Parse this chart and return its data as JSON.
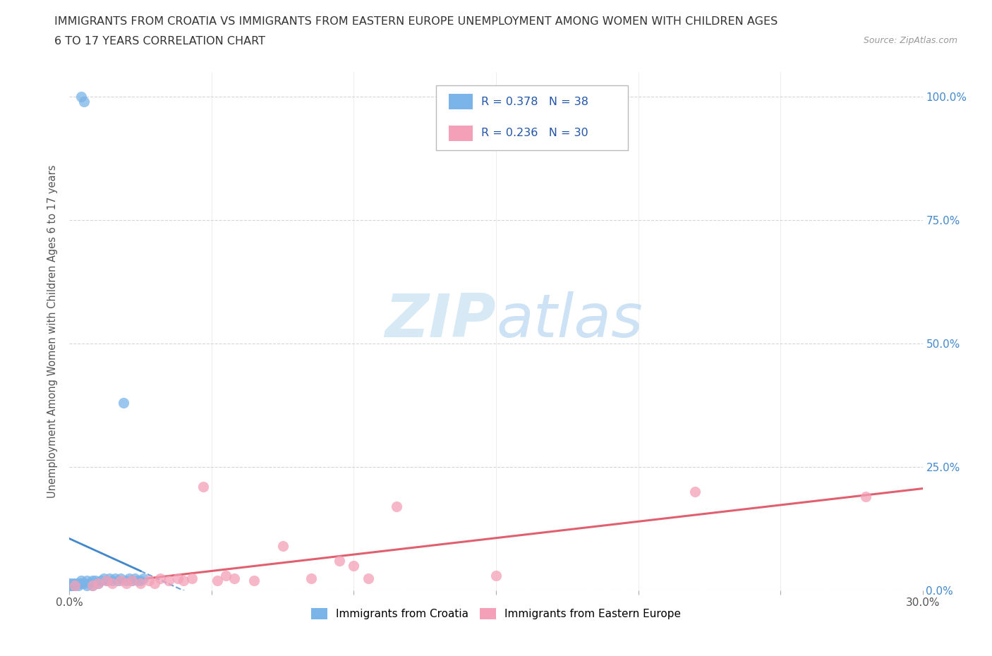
{
  "title_line1": "IMMIGRANTS FROM CROATIA VS IMMIGRANTS FROM EASTERN EUROPE UNEMPLOYMENT AMONG WOMEN WITH CHILDREN AGES",
  "title_line2": "6 TO 17 YEARS CORRELATION CHART",
  "source_text": "Source: ZipAtlas.com",
  "ylabel": "Unemployment Among Women with Children Ages 6 to 17 years",
  "xlim": [
    0.0,
    0.3
  ],
  "ylim": [
    0.0,
    1.05
  ],
  "x_ticks": [
    0.0,
    0.05,
    0.1,
    0.15,
    0.2,
    0.25,
    0.3
  ],
  "x_tick_labels": [
    "0.0%",
    "",
    "",
    "",
    "",
    "",
    "30.0%"
  ],
  "y_ticks": [
    0.0,
    0.25,
    0.5,
    0.75,
    1.0
  ],
  "y_tick_labels": [
    "0.0%",
    "25.0%",
    "50.0%",
    "75.0%",
    "100.0%"
  ],
  "croatia_color": "#7ab4e8",
  "eastern_europe_color": "#f4a0b8",
  "croatia_line_color": "#4488cc",
  "eastern_europe_line_color": "#e06070",
  "croatia_R": 0.378,
  "croatia_N": 38,
  "eastern_europe_R": 0.236,
  "eastern_europe_N": 30,
  "croatia_x": [
    0.004,
    0.005,
    0.0,
    0.0,
    0.0,
    0.0,
    0.001,
    0.001,
    0.002,
    0.002,
    0.003,
    0.003,
    0.004,
    0.004,
    0.005,
    0.006,
    0.006,
    0.007,
    0.008,
    0.008,
    0.009,
    0.01,
    0.011,
    0.012,
    0.013,
    0.014,
    0.015,
    0.016,
    0.017,
    0.018,
    0.019,
    0.02,
    0.021,
    0.022,
    0.023,
    0.024,
    0.025,
    0.026
  ],
  "croatia_y": [
    1.0,
    0.99,
    0.005,
    0.01,
    0.01,
    0.015,
    0.01,
    0.015,
    0.01,
    0.015,
    0.01,
    0.015,
    0.015,
    0.02,
    0.015,
    0.01,
    0.02,
    0.015,
    0.01,
    0.02,
    0.02,
    0.015,
    0.02,
    0.025,
    0.02,
    0.025,
    0.02,
    0.025,
    0.02,
    0.025,
    0.38,
    0.02,
    0.025,
    0.02,
    0.025,
    0.02,
    0.02,
    0.025
  ],
  "eastern_europe_x": [
    0.002,
    0.008,
    0.01,
    0.013,
    0.015,
    0.018,
    0.02,
    0.022,
    0.025,
    0.028,
    0.03,
    0.032,
    0.035,
    0.038,
    0.04,
    0.043,
    0.047,
    0.052,
    0.055,
    0.058,
    0.065,
    0.075,
    0.085,
    0.095,
    0.1,
    0.105,
    0.115,
    0.15,
    0.22,
    0.28
  ],
  "eastern_europe_y": [
    0.01,
    0.01,
    0.015,
    0.02,
    0.015,
    0.02,
    0.015,
    0.02,
    0.015,
    0.02,
    0.015,
    0.025,
    0.02,
    0.025,
    0.02,
    0.025,
    0.21,
    0.02,
    0.03,
    0.025,
    0.02,
    0.09,
    0.025,
    0.06,
    0.05,
    0.025,
    0.17,
    0.03,
    0.2,
    0.19
  ],
  "watermark_text": "ZIPatlas",
  "legend_label_croatia": "Immigrants from Croatia",
  "legend_label_eastern": "Immigrants from Eastern Europe",
  "grid_color": "#cccccc",
  "background_color": "#ffffff"
}
